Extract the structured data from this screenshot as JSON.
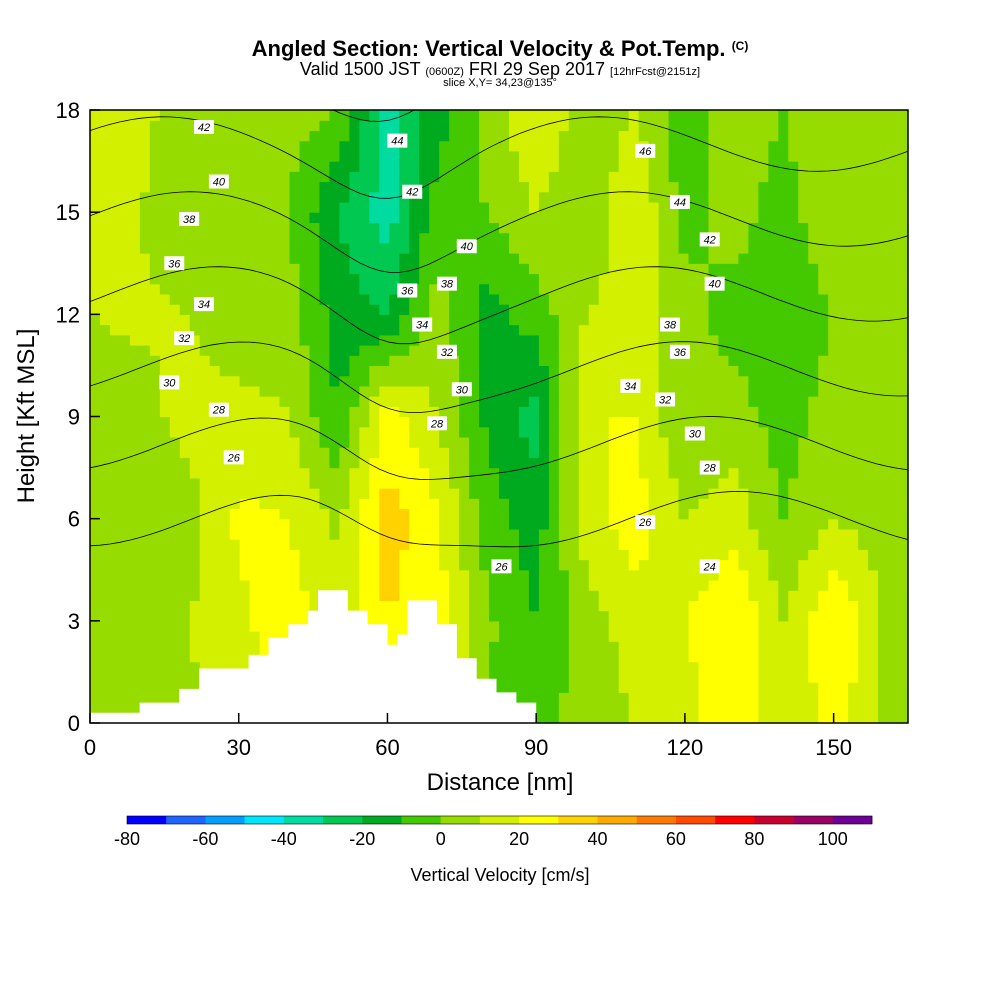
{
  "header": {
    "title": "Angled Section: Vertical Velocity & Pot.Temp.",
    "title_suffix": "(C)",
    "valid_prefix": "Valid 1500 JST",
    "valid_zulu": "(0600Z)",
    "valid_date": "FRI 29 Sep 2017",
    "forecast": "[12hrFcst@2151z]",
    "slice": "slice X,Y= 34,23@135°"
  },
  "chart_data": {
    "type": "heatmap",
    "x_axis": {
      "label": "Distance [nm]",
      "range": [
        0,
        165
      ],
      "ticks": [
        0,
        30,
        60,
        90,
        120,
        150
      ]
    },
    "y_axis": {
      "label": "Height [Kft MSL]",
      "range": [
        0,
        18
      ],
      "ticks": [
        0,
        3,
        6,
        9,
        12,
        15,
        18
      ]
    },
    "colorbar": {
      "label": "Vertical Velocity [cm/s]",
      "tick_labels": [
        -80,
        -60,
        -40,
        -20,
        0,
        20,
        40,
        60,
        80,
        100
      ],
      "levels": [
        -80,
        -70,
        -60,
        -50,
        -40,
        -30,
        -20,
        -10,
        0,
        10,
        20,
        30,
        40,
        50,
        60,
        70,
        80,
        90,
        100,
        110
      ],
      "colors": [
        "#0000ff",
        "#1e64ff",
        "#00a0ff",
        "#00e6ff",
        "#00dca0",
        "#00c850",
        "#00aa1e",
        "#44c800",
        "#96dc00",
        "#d2f000",
        "#ffff00",
        "#ffd200",
        "#ffaa00",
        "#ff7800",
        "#ff4b00",
        "#ff0000",
        "#c80030",
        "#9b0064",
        "#6e0096"
      ]
    },
    "velocity_field": {
      "x": [
        0,
        10,
        20,
        30,
        40,
        50,
        60,
        70,
        80,
        90,
        100,
        110,
        120,
        130,
        140,
        150,
        160,
        165
      ],
      "heights": [
        0,
        3,
        6,
        9,
        12,
        15,
        18
      ],
      "values": [
        [
          5,
          5,
          8,
          12,
          25,
          0,
          15,
          28,
          0,
          -5,
          5,
          10,
          15,
          30,
          10,
          25,
          8,
          5
        ],
        [
          5,
          8,
          10,
          18,
          25,
          15,
          30,
          25,
          2,
          -10,
          5,
          15,
          20,
          30,
          10,
          30,
          10,
          5
        ],
        [
          5,
          0,
          5,
          22,
          20,
          8,
          35,
          22,
          -5,
          -15,
          15,
          25,
          10,
          15,
          0,
          10,
          5,
          5
        ],
        [
          5,
          5,
          15,
          15,
          10,
          -10,
          25,
          10,
          -12,
          -25,
          20,
          20,
          0,
          5,
          -5,
          5,
          0,
          5
        ],
        [
          10,
          12,
          10,
          0,
          5,
          -15,
          -20,
          5,
          -15,
          -5,
          10,
          15,
          5,
          -5,
          -10,
          0,
          5,
          5
        ],
        [
          15,
          10,
          0,
          5,
          0,
          -20,
          -35,
          -5,
          0,
          10,
          0,
          20,
          -5,
          5,
          -5,
          10,
          5,
          5
        ],
        [
          20,
          15,
          0,
          10,
          5,
          0,
          -35,
          -15,
          5,
          20,
          5,
          10,
          -5,
          5,
          0,
          10,
          5,
          5
        ]
      ]
    },
    "terrain": {
      "x": [
        0,
        10,
        18,
        22,
        28,
        32,
        36,
        40,
        44,
        46,
        50,
        52,
        56,
        60,
        62,
        64,
        66,
        70,
        74,
        78,
        82,
        86,
        90
      ],
      "height": [
        0.3,
        0.6,
        1.0,
        1.6,
        1.6,
        2.0,
        2.5,
        2.9,
        3.3,
        3.9,
        3.9,
        3.3,
        2.9,
        2.3,
        2.6,
        3.6,
        3.6,
        2.9,
        1.9,
        1.3,
        0.9,
        0.6,
        0.3
      ]
    },
    "theta_contours": {
      "labeled_levels": [
        24,
        26,
        28,
        30,
        32,
        34,
        36,
        38,
        40,
        42,
        44,
        46
      ],
      "label_positions": [
        {
          "value": 42,
          "x": 23,
          "y": 17.5
        },
        {
          "value": 40,
          "x": 26,
          "y": 15.9
        },
        {
          "value": 38,
          "x": 20,
          "y": 14.8
        },
        {
          "value": 36,
          "x": 17,
          "y": 13.5
        },
        {
          "value": 34,
          "x": 23,
          "y": 12.3
        },
        {
          "value": 32,
          "x": 19,
          "y": 11.3
        },
        {
          "value": 30,
          "x": 16,
          "y": 10.0
        },
        {
          "value": 28,
          "x": 26,
          "y": 9.2
        },
        {
          "value": 26,
          "x": 29,
          "y": 7.8
        },
        {
          "value": 44,
          "x": 62,
          "y": 17.1
        },
        {
          "value": 42,
          "x": 65,
          "y": 15.6
        },
        {
          "value": 40,
          "x": 76,
          "y": 14.0
        },
        {
          "value": 38,
          "x": 72,
          "y": 12.9
        },
        {
          "value": 36,
          "x": 64,
          "y": 12.7
        },
        {
          "value": 34,
          "x": 67,
          "y": 11.7
        },
        {
          "value": 32,
          "x": 72,
          "y": 10.9
        },
        {
          "value": 30,
          "x": 75,
          "y": 9.8
        },
        {
          "value": 28,
          "x": 70,
          "y": 8.8
        },
        {
          "value": 26,
          "x": 83,
          "y": 4.6
        },
        {
          "value": 46,
          "x": 112,
          "y": 16.8
        },
        {
          "value": 44,
          "x": 119,
          "y": 15.3
        },
        {
          "value": 42,
          "x": 125,
          "y": 14.2
        },
        {
          "value": 40,
          "x": 126,
          "y": 12.9
        },
        {
          "value": 38,
          "x": 117,
          "y": 11.7
        },
        {
          "value": 36,
          "x": 119,
          "y": 10.9
        },
        {
          "value": 34,
          "x": 109,
          "y": 9.9
        },
        {
          "value": 32,
          "x": 116,
          "y": 9.5
        },
        {
          "value": 30,
          "x": 122,
          "y": 8.5
        },
        {
          "value": 28,
          "x": 125,
          "y": 7.5
        },
        {
          "value": 26,
          "x": 112,
          "y": 5.9
        },
        {
          "value": 24,
          "x": 125,
          "y": 4.6
        }
      ]
    }
  }
}
